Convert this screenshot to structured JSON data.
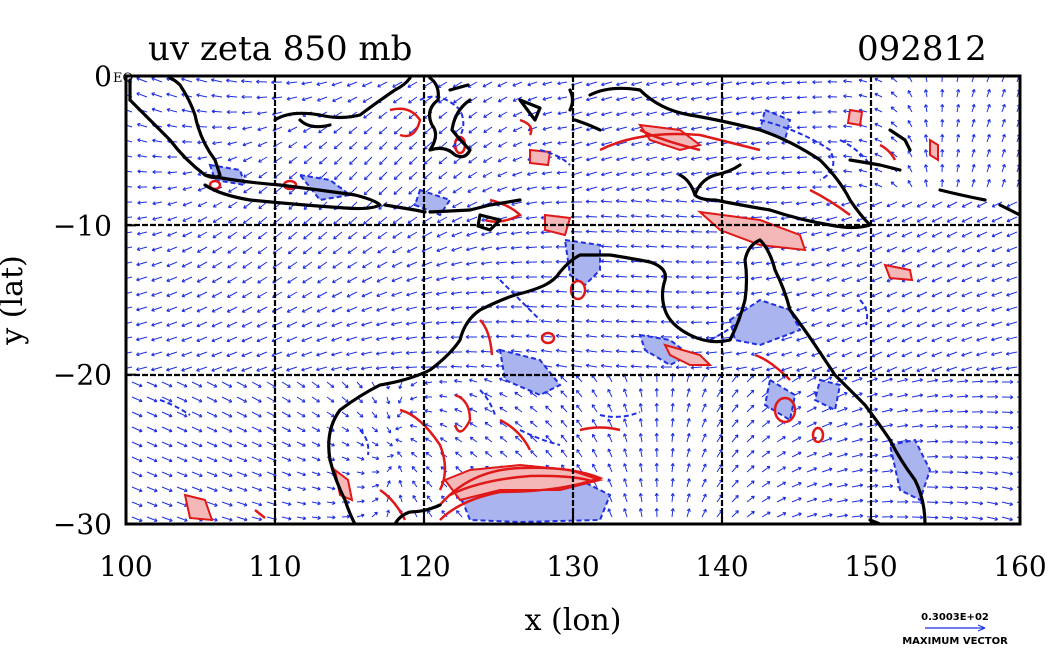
{
  "header": {
    "title": "uv zeta 850 mb",
    "date_code": "092812"
  },
  "map": {
    "lon_range": [
      100,
      160
    ],
    "lat_range": [
      -30,
      0
    ],
    "x_ticks": [
      "100",
      "110",
      "120",
      "130",
      "140",
      "150",
      "160"
    ],
    "y_ticks": [
      "0",
      "−10",
      "−20",
      "−30"
    ],
    "corner_label": "EQ",
    "xlabel": "x (lon)",
    "ylabel": "y (lat)",
    "colors": {
      "vector": "#1f2fe0",
      "positive_vorticity": "#e01818",
      "negative_vorticity": "#2030e0",
      "negative_fill": "#aab4ee",
      "positive_fill": "#f4b8b8",
      "coast": "#000000",
      "grid": "#000000"
    }
  },
  "legend": {
    "max_vector_value": "0.3003E+02",
    "max_vector_label": "MAXIMUM VECTOR"
  }
}
